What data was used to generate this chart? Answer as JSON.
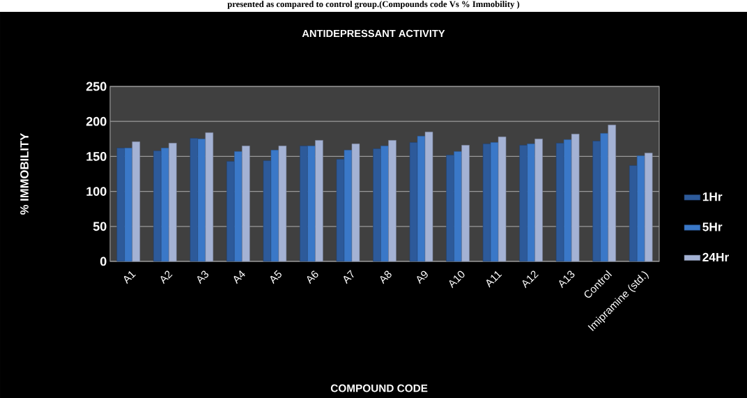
{
  "chart_data": {
    "type": "bar",
    "title": "ANTIDEPRESSANT  ACTIVITY",
    "annotations": [
      "presented as compared to control group.(Compounds code Vs % Immobility )"
    ],
    "xlabel": "COMPOUND CODE",
    "ylabel": "% IMMOBILITY",
    "categories": [
      "A1",
      "A2",
      "A3",
      "A4",
      "A5",
      "A6",
      "A7",
      "A8",
      "A9",
      "A10",
      "A11",
      "A12",
      "A13",
      "Control",
      "Imipramine (std.)"
    ],
    "series": [
      {
        "name": "1Hr",
        "color": "#2d5a9a",
        "values": [
          162,
          158,
          176,
          143,
          144,
          165,
          146,
          161,
          170,
          152,
          168,
          166,
          169,
          172,
          137
        ]
      },
      {
        "name": "5Hr",
        "color": "#3a78c8",
        "values": [
          162,
          162,
          175,
          157,
          159,
          165,
          159,
          165,
          179,
          157,
          170,
          168,
          174,
          183,
          151
        ]
      },
      {
        "name": "24Hr",
        "color": "#a4b2d4",
        "values": [
          171,
          169,
          184,
          165,
          165,
          173,
          168,
          173,
          185,
          166,
          178,
          175,
          182,
          195,
          155
        ]
      }
    ],
    "ylim": [
      0,
      250
    ],
    "yticks": [
      0,
      50,
      100,
      150,
      200,
      250
    ],
    "grid": "y",
    "legend": "right"
  }
}
